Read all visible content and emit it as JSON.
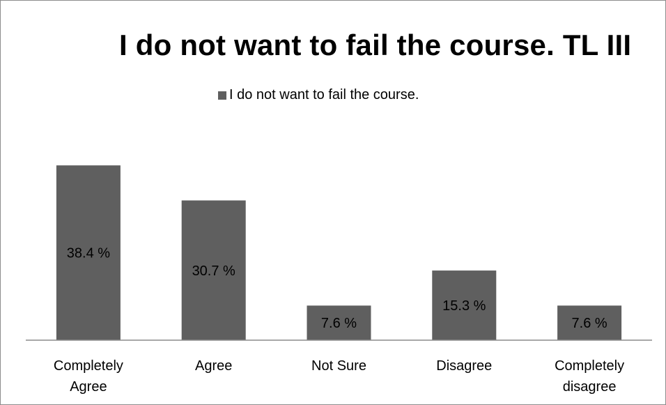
{
  "chart_data": {
    "type": "bar",
    "title": "I do not want to fail the course. TL III",
    "categories": [
      [
        "Completely",
        "Agree"
      ],
      [
        "Agree"
      ],
      [
        "Not Sure"
      ],
      [
        "Disagree"
      ],
      [
        "Completely",
        "disagree"
      ]
    ],
    "series": [
      {
        "name": "I do not want to fail the course.",
        "values": [
          38.4,
          30.7,
          7.6,
          15.3,
          7.6
        ],
        "data_labels": [
          "38.4 %",
          "30.7 %",
          "7.6 %",
          "15.3 %",
          "7.6 %"
        ],
        "color": "#5f5f5f"
      }
    ],
    "xlabel": "",
    "ylabel": "",
    "ylim": [
      0,
      50
    ],
    "grid": false,
    "legend_position": "top",
    "axis_color": "#8c8c8c"
  }
}
